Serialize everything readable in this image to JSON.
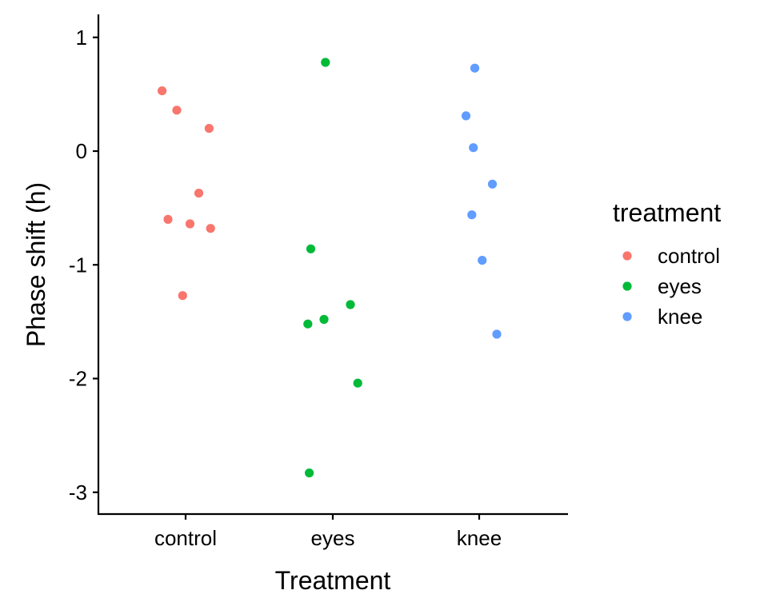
{
  "chart_data": {
    "type": "scatter",
    "title": "",
    "xlabel": "Treatment",
    "ylabel": "Phase shift (h)",
    "categories": [
      "control",
      "eyes",
      "knee"
    ],
    "ylim": [
      -3.2,
      1.2
    ],
    "yticks": [
      1,
      0,
      -1,
      -2,
      -3
    ],
    "ytick_labels": [
      "1",
      "0",
      "-1",
      "-2",
      "-3"
    ],
    "grid": false,
    "legend": {
      "title": "treatment",
      "placement": "right",
      "entries": [
        "control",
        "eyes",
        "knee"
      ]
    },
    "series": [
      {
        "name": "control",
        "color": "#F8766D",
        "points": [
          {
            "x": "control",
            "jitter": -0.16,
            "y": 0.53
          },
          {
            "x": "control",
            "jitter": -0.06,
            "y": 0.36
          },
          {
            "x": "control",
            "jitter": 0.16,
            "y": 0.2
          },
          {
            "x": "control",
            "jitter": 0.09,
            "y": -0.37
          },
          {
            "x": "control",
            "jitter": -0.12,
            "y": -0.6
          },
          {
            "x": "control",
            "jitter": 0.03,
            "y": -0.64
          },
          {
            "x": "control",
            "jitter": 0.17,
            "y": -0.68
          },
          {
            "x": "control",
            "jitter": -0.02,
            "y": -1.27
          }
        ]
      },
      {
        "name": "eyes",
        "color": "#00BA38",
        "points": [
          {
            "x": "eyes",
            "jitter": -0.05,
            "y": 0.78
          },
          {
            "x": "eyes",
            "jitter": -0.15,
            "y": -0.86
          },
          {
            "x": "eyes",
            "jitter": 0.12,
            "y": -1.35
          },
          {
            "x": "eyes",
            "jitter": -0.06,
            "y": -1.48
          },
          {
            "x": "eyes",
            "jitter": -0.17,
            "y": -1.52
          },
          {
            "x": "eyes",
            "jitter": 0.17,
            "y": -2.04
          },
          {
            "x": "eyes",
            "jitter": -0.16,
            "y": -2.83
          }
        ]
      },
      {
        "name": "knee",
        "color": "#619CFF",
        "points": [
          {
            "x": "knee",
            "jitter": -0.03,
            "y": 0.73
          },
          {
            "x": "knee",
            "jitter": -0.09,
            "y": 0.31
          },
          {
            "x": "knee",
            "jitter": -0.04,
            "y": 0.03
          },
          {
            "x": "knee",
            "jitter": 0.09,
            "y": -0.29
          },
          {
            "x": "knee",
            "jitter": -0.05,
            "y": -0.56
          },
          {
            "x": "knee",
            "jitter": 0.02,
            "y": -0.96
          },
          {
            "x": "knee",
            "jitter": 0.12,
            "y": -1.61
          }
        ]
      }
    ]
  }
}
